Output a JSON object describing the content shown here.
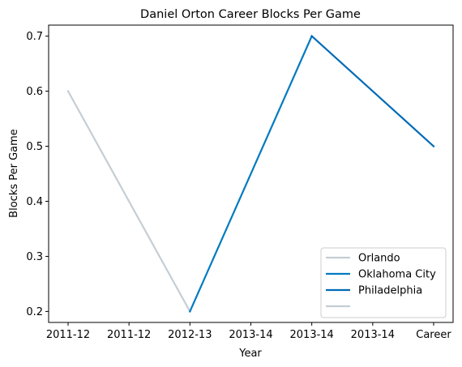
{
  "chart_data": {
    "type": "line",
    "title": "Daniel Orton Career Blocks Per Game",
    "xlabel": "Year",
    "ylabel": "Blocks Per Game",
    "categories": [
      "2011-12",
      "2011-12",
      "2012-13",
      "2013-14",
      "2013-14",
      "2013-14",
      "Career"
    ],
    "ylim": [
      0.18,
      0.72
    ],
    "yticks": [
      0.2,
      0.3,
      0.4,
      0.5,
      0.6,
      0.7
    ],
    "grid": false,
    "legend_position": "lower right",
    "series": [
      {
        "name": "Orlando",
        "color": "#c4ced4",
        "points": [
          [
            0,
            0.6
          ],
          [
            2,
            0.2
          ]
        ]
      },
      {
        "name": "Oklahoma City",
        "color": "#007ac1",
        "points": [
          [
            2,
            0.2
          ],
          [
            4,
            0.7
          ]
        ]
      },
      {
        "name": "Philadelphia",
        "color": "#006bb6",
        "points": [
          [
            4,
            0.7
          ],
          [
            6,
            0.5
          ]
        ]
      },
      {
        "name": "",
        "color": "#c4ced4",
        "points": []
      }
    ]
  }
}
